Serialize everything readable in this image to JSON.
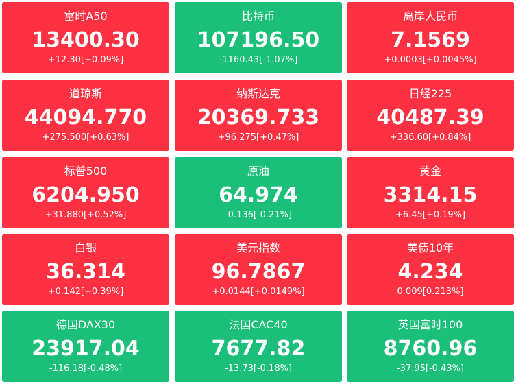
{
  "tiles": [
    {
      "name": "富时A50",
      "price": "13400.30",
      "change": "+12.30[+0.09%]",
      "color": "#fd3141"
    },
    {
      "name": "比特币",
      "price": "107196.50",
      "change": "-1160.43[-1.07%]",
      "color": "#1bbf79"
    },
    {
      "name": "离岸人民币",
      "price": "7.1569",
      "change": "+0.0003[+0.0045%]",
      "color": "#fd3141"
    },
    {
      "name": "道琼斯",
      "price": "44094.770",
      "change": "+275.500[+0.63%]",
      "color": "#fd3141"
    },
    {
      "name": "纳斯达克",
      "price": "20369.733",
      "change": "+96.275[+0.47%]",
      "color": "#fd3141"
    },
    {
      "name": "日经225",
      "price": "40487.39",
      "change": "+336.60[+0.84%]",
      "color": "#fd3141"
    },
    {
      "name": "标普500",
      "price": "6204.950",
      "change": "+31.880[+0.52%]",
      "color": "#fd3141"
    },
    {
      "name": "原油",
      "price": "64.974",
      "change": "-0.136[-0.21%]",
      "color": "#1bbf79"
    },
    {
      "name": "黄金",
      "price": "3314.15",
      "change": "+6.45[+0.19%]",
      "color": "#fd3141"
    },
    {
      "name": "白银",
      "price": "36.314",
      "change": "+0.142[+0.39%]",
      "color": "#fd3141"
    },
    {
      "name": "美元指数",
      "price": "96.7867",
      "change": "+0.0144[+0.0149%]",
      "color": "#fd3141"
    },
    {
      "name": "美债10年",
      "price": "4.234",
      "change": "0.009[0.213%]",
      "color": "#fd3141"
    },
    {
      "name": "德国DAX30",
      "price": "23917.04",
      "change": "-116.18[-0.48%]",
      "color": "#1bbf79"
    },
    {
      "name": "法国CAC40",
      "price": "7677.82",
      "change": "-13.73[-0.18%]",
      "color": "#1bbf79"
    },
    {
      "name": "英国富时100",
      "price": "8760.96",
      "change": "-37.95[-0.43%]",
      "color": "#1bbf79"
    }
  ]
}
